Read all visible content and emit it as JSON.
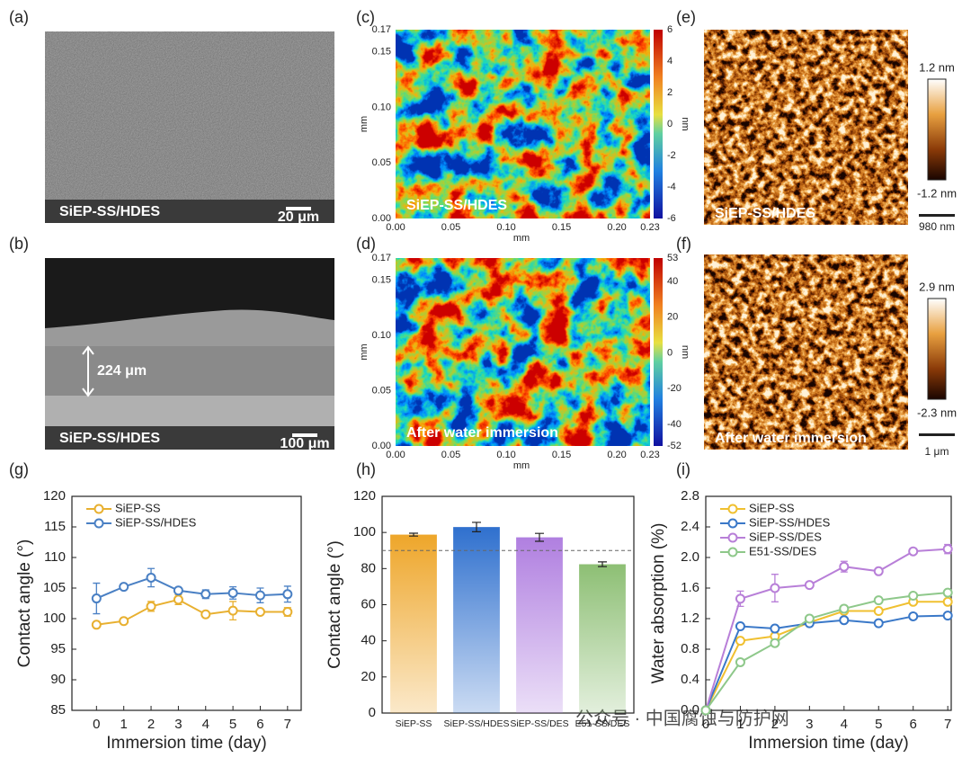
{
  "images": [
    {
      "panel_label": "(a)",
      "caption": "SiEP-SS/HDES",
      "scale_bar": "20 μm"
    },
    {
      "panel_label": "(b)",
      "caption": "SiEP-SS/HDES",
      "scale_bar": "100 μm",
      "thickness": "224 μm"
    },
    {
      "panel_label": "(c)",
      "caption": "SiEP-SS/HDES",
      "x_label": "mm",
      "y_label": "mm",
      "xticks": [
        "0.00",
        "0.05",
        "0.10",
        "0.15",
        "0.20",
        "0.23"
      ],
      "yticks": [
        "0.00",
        "0.05",
        "0.10",
        "0.15",
        "0.17"
      ],
      "colorbar_ticks": [
        "6",
        "4",
        "2",
        "0",
        "-2",
        "-4",
        "-6"
      ],
      "colorbar_label": "nm"
    },
    {
      "panel_label": "(d)",
      "caption": "After water immersion",
      "x_label": "mm",
      "y_label": "mm",
      "xticks": [
        "0.00",
        "0.05",
        "0.10",
        "0.15",
        "0.20",
        "0.23"
      ],
      "yticks": [
        "0.00",
        "0.05",
        "0.10",
        "0.15",
        "0.17"
      ],
      "colorbar_ticks": [
        "53",
        "40",
        "20",
        "0",
        "-20",
        "-40",
        "-52"
      ],
      "colorbar_label": "nm"
    },
    {
      "panel_label": "(e)",
      "caption": "SiEP-SS/HDES",
      "colorbar_max": "1.2 nm",
      "colorbar_min": "-1.2 nm",
      "scale_bar": "980 nm"
    },
    {
      "panel_label": "(f)",
      "caption": "After water immersion",
      "colorbar_max": "2.9 nm",
      "colorbar_min": "-2.3 nm",
      "scale_bar": "1 μm"
    }
  ],
  "watermark": "公众号 · 中国腐蚀与防护网",
  "chart_data": [
    {
      "type": "line",
      "panel_label": "(g)",
      "x_label": "Immersion time (day)",
      "y_label": "Contact angle (°)",
      "x": [
        0,
        1,
        2,
        3,
        4,
        5,
        6,
        7
      ],
      "xlim": [
        -0.9,
        7.5
      ],
      "xticks": [
        0,
        1,
        2,
        3,
        4,
        5,
        6,
        7
      ],
      "ylim": [
        85,
        120
      ],
      "yticks": [
        85,
        90,
        95,
        100,
        105,
        110,
        115,
        120
      ],
      "legend": "upper left",
      "series": [
        {
          "name": "SiEP-SS",
          "color": "#e8b030",
          "values": [
            99,
            99.6,
            102,
            103.1,
            100.7,
            101.3,
            101.1,
            101.1
          ],
          "errors": [
            0.3,
            0.4,
            0.8,
            0.8,
            0.3,
            1.5,
            0.3,
            0.7
          ]
        },
        {
          "name": "SiEP-SS/HDES",
          "color": "#4a80c4",
          "values": [
            103.3,
            105.2,
            106.7,
            104.6,
            104,
            104.2,
            103.8,
            104
          ],
          "errors": [
            2.5,
            0.3,
            1.5,
            0.3,
            0.7,
            1,
            1.2,
            1.3
          ]
        }
      ]
    },
    {
      "type": "bar",
      "panel_label": "(h)",
      "y_label": "Contact angle (°)",
      "categories": [
        "SiEP-SS",
        "SiEP-SS/HDES",
        "SiEP-SS/DES",
        "E51-SS/DES"
      ],
      "values": [
        98.8,
        103,
        97.3,
        82.4
      ],
      "errors": [
        0.8,
        2.6,
        2.2,
        1.3
      ],
      "colors": [
        "#eea62a",
        "#2f70ce",
        "#b07fe0",
        "#8dbf74"
      ],
      "ylim": [
        0,
        120
      ],
      "yticks": [
        0,
        20,
        40,
        60,
        80,
        100,
        120
      ],
      "reference_line": 90
    },
    {
      "type": "line",
      "panel_label": "(i)",
      "x_label": "Immersion time (day)",
      "y_label": "Water absorption (%)",
      "x": [
        0,
        1,
        2,
        3,
        4,
        5,
        6,
        7
      ],
      "xlim": [
        0,
        7.1
      ],
      "xticks": [
        0,
        1,
        2,
        3,
        4,
        5,
        6,
        7
      ],
      "ylim": [
        0,
        2.8
      ],
      "yticks": [
        {
          "value": 0,
          "label": "0.0"
        },
        {
          "value": 0.4,
          "label": "0.4"
        },
        {
          "value": 0.8,
          "label": "0.8"
        },
        {
          "value": 1.2,
          "label": "1.2"
        },
        {
          "value": 1.6,
          "label": "1.6"
        },
        {
          "value": 2.0,
          "label": "2.0"
        },
        {
          "value": 2.4,
          "label": "2.4"
        },
        {
          "value": 2.8,
          "label": "2.8"
        }
      ],
      "legend": "upper left",
      "series": [
        {
          "name": "SiEP-SS",
          "color": "#f0c030",
          "values": [
            0,
            0.91,
            0.97,
            1.15,
            1.3,
            1.3,
            1.42,
            1.42
          ]
        },
        {
          "name": "SiEP-SS/HDES",
          "color": "#3a78c8",
          "values": [
            0,
            1.1,
            1.07,
            1.14,
            1.18,
            1.14,
            1.23,
            1.24
          ]
        },
        {
          "name": "SiEP-SS/DES",
          "color": "#b87fd8",
          "values": [
            0,
            1.46,
            1.6,
            1.64,
            1.88,
            1.82,
            2.08,
            2.11
          ],
          "errors": [
            0,
            0.1,
            0.18,
            0.03,
            0.07,
            0.03,
            0.03,
            0.06
          ]
        },
        {
          "name": "E51-SS/DES",
          "color": "#8ec88a",
          "values": [
            0,
            0.63,
            0.88,
            1.2,
            1.33,
            1.44,
            1.5,
            1.54
          ]
        }
      ]
    }
  ]
}
